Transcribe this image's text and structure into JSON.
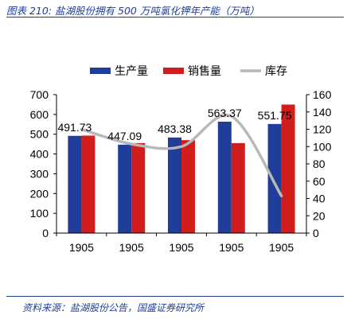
{
  "figure": {
    "title": "图表 210: 盐湖股份拥有 500 万吨氯化钾年产能（万吨）",
    "source": "资料来源：盐湖股份公告，国盛证券研究所"
  },
  "chart_data": {
    "type": "bar",
    "categories": [
      "1905",
      "1905",
      "1905",
      "1905",
      "1905"
    ],
    "series": [
      {
        "name": "生产量",
        "type": "bar",
        "axis": "left",
        "color": "#1f3d99",
        "values": [
          491.73,
          447.09,
          483.38,
          563.37,
          551.75
        ]
      },
      {
        "name": "销售量",
        "type": "bar",
        "axis": "left",
        "color": "#d21d1d",
        "values": [
          493,
          455,
          470,
          455,
          650
        ]
      },
      {
        "name": "库存",
        "type": "line",
        "axis": "right",
        "color": "#b8b8b8",
        "values": [
          120,
          103,
          100,
          135,
          43
        ]
      }
    ],
    "data_labels": [
      "491.73",
      "447.09",
      "483.38",
      "563.37",
      "551.75"
    ],
    "y_left": {
      "min": 0,
      "max": 700,
      "ticks": [
        0,
        100,
        200,
        300,
        400,
        500,
        600,
        700
      ]
    },
    "y_right": {
      "min": 0,
      "max": 160,
      "ticks": [
        0,
        20,
        40,
        60,
        80,
        100,
        120,
        140,
        160
      ]
    },
    "legend_position": "top",
    "grid": false
  }
}
